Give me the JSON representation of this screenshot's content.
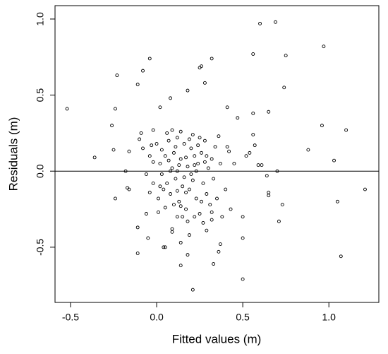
{
  "chart_data": {
    "type": "scatter",
    "xlabel": "Fitted values (m)",
    "ylabel": "Residuals (m)",
    "xlim": [
      -0.59,
      1.29
    ],
    "ylim": [
      -0.863,
      1.088
    ],
    "xticks": [
      -0.5,
      {
        "value": 0,
        "label": "0.0"
      },
      0.5,
      {
        "value": 1,
        "label": "1.0"
      }
    ],
    "yticks": [
      -0.5,
      {
        "value": 0,
        "label": "0.0"
      },
      0.5,
      {
        "value": 1,
        "label": "1.0"
      }
    ],
    "hline": 0,
    "color": "#000000",
    "x": [
      -0.52,
      -0.36,
      -0.26,
      -0.25,
      -0.24,
      -0.24,
      -0.23,
      -0.18,
      -0.17,
      -0.16,
      -0.16,
      -0.11,
      -0.11,
      -0.11,
      -0.1,
      -0.09,
      -0.08,
      -0.06,
      -0.05,
      -0.04,
      -0.04,
      -0.03,
      -0.02,
      -0.02,
      0.01,
      0.02,
      0.04,
      0.05,
      0.08,
      0.09,
      0.09,
      0.12,
      0.14,
      0.14,
      0.14,
      0.18,
      0.18,
      0.19,
      0.21,
      0.25,
      0.26,
      0.28,
      0.32,
      0.29,
      0.32,
      0.32,
      0.33,
      0.36,
      0.37,
      0.36,
      0.41,
      0.41,
      0.42,
      0.47,
      0.5,
      0.5,
      0.5,
      0.52,
      0.54,
      0.56,
      0.57,
      0.59,
      0.61,
      0.56,
      0.56,
      0.6,
      0.69,
      0.65,
      0.64,
      0.65,
      0.65,
      0.7,
      0.71,
      0.73,
      0.74,
      0.75,
      0.97,
      0.96,
      0.88,
      1.03,
      1.05,
      1.07,
      1.1,
      1.21,
      0.02,
      0.03,
      0.05,
      0.06,
      0.07,
      0.08,
      0.09,
      0.1,
      0.11,
      0.12,
      0.13,
      0.14,
      0.15,
      0.16,
      0.17,
      0.18,
      0.19,
      0.2,
      0.21,
      0.22,
      0.23,
      0.24,
      0.25,
      0.26,
      0.27,
      0.28,
      0.29,
      0.3,
      0.31,
      0.32,
      0.03,
      0.04,
      0.06,
      0.08,
      0.1,
      0.11,
      0.13,
      0.15,
      0.17,
      0.19,
      0.2,
      0.22,
      0.24,
      0.26,
      0.28,
      0.0,
      -0.02,
      -0.04,
      -0.06,
      -0.08,
      0.01,
      0.05,
      0.09,
      0.12,
      0.14,
      0.16,
      0.18,
      0.21,
      0.23,
      0.25,
      0.27,
      0.29,
      0.33,
      0.34,
      0.35,
      0.37,
      0.4,
      0.43,
      0.45,
      0.38,
      0.07,
      0.12,
      0.17,
      0.22,
      0.02
    ],
    "y": [
      0.41,
      0.09,
      0.3,
      0.14,
      -0.18,
      0.41,
      0.63,
      0.0,
      -0.11,
      -0.12,
      0.13,
      -0.37,
      -0.54,
      0.57,
      0.21,
      0.25,
      0.66,
      -0.28,
      -0.44,
      0.74,
      -0.14,
      0.17,
      0.06,
      0.27,
      -0.27,
      0.42,
      -0.5,
      -0.5,
      0.48,
      -0.38,
      -0.4,
      -0.13,
      -0.23,
      -0.62,
      -0.47,
      0.53,
      -0.55,
      -0.42,
      -0.78,
      0.68,
      0.69,
      0.58,
      0.74,
      -0.39,
      -0.32,
      -0.27,
      -0.61,
      -0.53,
      -0.48,
      0.23,
      0.42,
      0.16,
      0.13,
      0.35,
      -0.71,
      -0.44,
      -0.3,
      0.1,
      0.12,
      0.24,
      0.17,
      0.04,
      0.04,
      0.38,
      0.77,
      0.97,
      0.98,
      0.39,
      -0.03,
      -0.14,
      -0.16,
      0.0,
      -0.33,
      -0.22,
      0.55,
      0.76,
      0.82,
      0.3,
      0.14,
      0.07,
      -0.2,
      -0.56,
      0.27,
      -0.12,
      0.05,
      -0.02,
      0.1,
      -0.08,
      0.2,
      -0.15,
      0.02,
      0.12,
      -0.05,
      0.22,
      -0.2,
      0.08,
      -0.1,
      0.18,
      -0.25,
      0.03,
      -0.12,
      0.15,
      -0.06,
      0.1,
      -0.18,
      0.05,
      -0.28,
      0.12,
      -0.08,
      0.2,
      -0.15,
      0.02,
      -0.22,
      0.08,
      0.14,
      -0.12,
      0.25,
      0.0,
      -0.22,
      0.16,
      0.04,
      -0.3,
      0.09,
      0.21,
      -0.02,
      -0.3,
      0.17,
      -0.2,
      0.06,
      0.18,
      -0.08,
      0.1,
      -0.02,
      0.15,
      -0.18,
      -0.24,
      0.27,
      -0.3,
      0.26,
      -0.04,
      -0.33,
      0.24,
      0.0,
      0.22,
      -0.34,
      0.1,
      -0.05,
      0.16,
      -0.18,
      0.05,
      -0.12,
      -0.25,
      0.05,
      -0.3,
      0.07,
      0.0,
      -0.14,
      0.04,
      -0.1
    ]
  }
}
